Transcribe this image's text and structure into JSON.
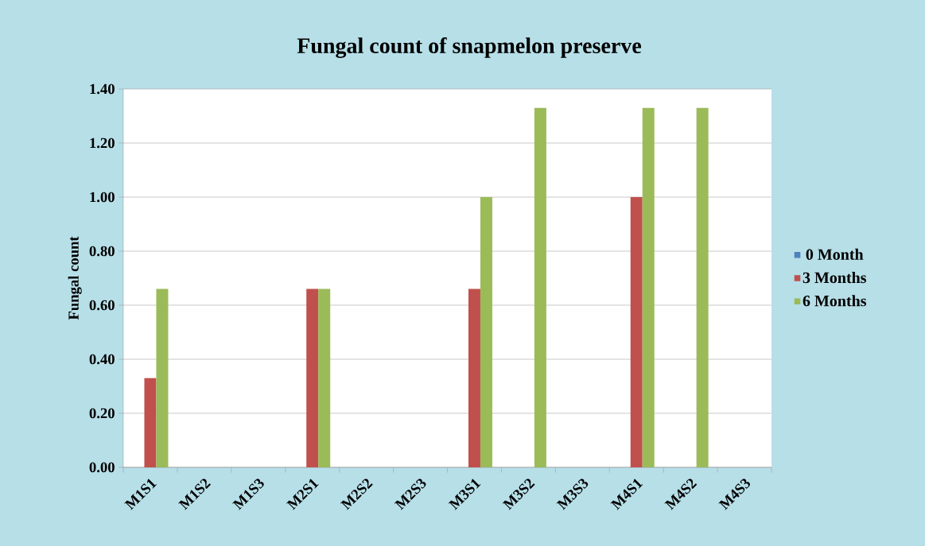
{
  "chart_data": {
    "type": "bar",
    "title": "Fungal count of snapmelon preserve",
    "ylabel": "Fungal count",
    "categories": [
      "M1S1",
      "M1S2",
      "M1S3",
      "M2S1",
      "M2S2",
      "M2S3",
      "M3S1",
      "M3S2",
      "M3S3",
      "M4S1",
      "M4S2",
      "M4S3"
    ],
    "series": [
      {
        "name": "0 Month",
        "color": "#4f81bd",
        "values": [
          0,
          0,
          0,
          0,
          0,
          0,
          0,
          0,
          0,
          0,
          0,
          0
        ]
      },
      {
        "name": "3 Months",
        "color": "#c0504d",
        "values": [
          0.33,
          0,
          0,
          0.66,
          0,
          0,
          0.66,
          0,
          0,
          1.0,
          0,
          0
        ]
      },
      {
        "name": "6 Months",
        "color": "#9bbb59",
        "values": [
          0.66,
          0,
          0,
          0.66,
          0,
          0,
          1.0,
          1.33,
          0,
          1.33,
          1.33,
          0
        ]
      }
    ],
    "ylim": [
      0,
      1.4
    ],
    "yticks": [
      {
        "value": 0,
        "label": "0.00"
      },
      {
        "value": 0.2,
        "label": "0.20"
      },
      {
        "value": 0.4,
        "label": "0.40"
      },
      {
        "value": 0.6,
        "label": "0.60"
      },
      {
        "value": 0.8,
        "label": "0.80"
      },
      {
        "value": 1.0,
        "label": "1.00"
      },
      {
        "value": 1.2,
        "label": "1.20"
      },
      {
        "value": 1.4,
        "label": "1.40"
      }
    ],
    "grid": "y",
    "legend": "right"
  }
}
